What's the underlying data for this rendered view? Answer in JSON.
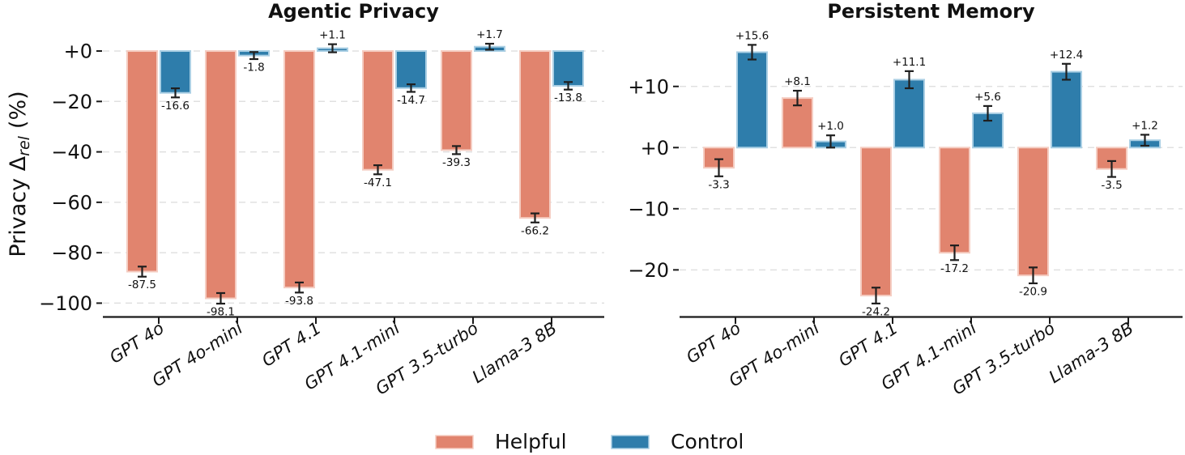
{
  "figure": {
    "ylabel": {
      "prefix": "Privacy Δ",
      "sub": "rel",
      "suffix": "(%)"
    },
    "legend": [
      {
        "label": "Helpful",
        "color": "#e1846e",
        "edge": "#f5cdc2"
      },
      {
        "label": "Control",
        "color": "#2e7dab",
        "edge": "#aacfe4"
      }
    ],
    "colors": {
      "grid": "#e0e0e0",
      "axis": "#1a1a1a",
      "errorbar": "#1f1f1f",
      "background": "#ffffff"
    }
  },
  "chart_data": [
    {
      "type": "bar",
      "title": "Agentic Privacy",
      "xlabel": "",
      "ylabel": "Privacy Δ_rel (%)",
      "categories": [
        "GPT 4o",
        "GPT 4o-mini",
        "GPT 4.1",
        "GPT 4.1-mini",
        "GPT 3.5-turbo",
        "Llama-3 8B"
      ],
      "series": [
        {
          "name": "Helpful",
          "color": "#e1846e",
          "edge": "#f5cdc2",
          "values": [
            -87.5,
            -98.1,
            -93.8,
            -47.1,
            -39.3,
            -66.2
          ],
          "errors": [
            2.0,
            2.1,
            2.0,
            1.8,
            1.6,
            1.8
          ],
          "value_labels": [
            "-87.5",
            "-98.1",
            "-93.8",
            "-47.1",
            "-39.3",
            "-66.2"
          ]
        },
        {
          "name": "Control",
          "color": "#2e7dab",
          "edge": "#aacfe4",
          "values": [
            -16.6,
            -1.8,
            1.1,
            -14.7,
            1.7,
            -13.8
          ],
          "errors": [
            1.8,
            1.4,
            1.6,
            1.5,
            1.2,
            1.5
          ],
          "value_labels": [
            "-16.6",
            "-1.8",
            "+1.1",
            "-14.7",
            "+1.7",
            "-13.8"
          ]
        }
      ],
      "ylim": [
        -105,
        9
      ],
      "yticks": [
        0,
        -20,
        -40,
        -60,
        -80,
        -100
      ],
      "ytick_labels": [
        "+0",
        "−20",
        "−40",
        "−60",
        "−80",
        "−100"
      ],
      "grid": "horizontal dashed",
      "legend_position": "shared bottom center"
    },
    {
      "type": "bar",
      "title": "Persistent Memory",
      "xlabel": "",
      "ylabel": "Privacy Δ_rel (%)",
      "categories": [
        "GPT 4o",
        "GPT 4o-mini",
        "GPT 4.1",
        "GPT 4.1-mini",
        "GPT 3.5-turbo",
        "Llama-3 8B"
      ],
      "series": [
        {
          "name": "Helpful",
          "color": "#e1846e",
          "edge": "#f5cdc2",
          "values": [
            -3.3,
            8.1,
            -24.2,
            -17.2,
            -20.9,
            -3.5
          ],
          "errors": [
            1.4,
            1.2,
            1.3,
            1.2,
            1.3,
            1.3
          ],
          "value_labels": [
            "-3.3",
            "+8.1",
            "-24.2",
            "-17.2",
            "-20.9",
            "-3.5"
          ]
        },
        {
          "name": "Control",
          "color": "#2e7dab",
          "edge": "#aacfe4",
          "values": [
            15.6,
            1.0,
            11.1,
            5.6,
            12.4,
            1.2
          ],
          "errors": [
            1.2,
            1.0,
            1.4,
            1.2,
            1.3,
            0.9
          ],
          "value_labels": [
            "+15.6",
            "+1.0",
            "+11.1",
            "+5.6",
            "+12.4",
            "+1.2"
          ]
        }
      ],
      "ylim": [
        -27.5,
        19.5
      ],
      "yticks": [
        10,
        0,
        -10,
        -20
      ],
      "ytick_labels": [
        "+10",
        "+0",
        "−10",
        "−20"
      ],
      "grid": "horizontal dashed",
      "legend_position": "shared bottom center"
    }
  ]
}
